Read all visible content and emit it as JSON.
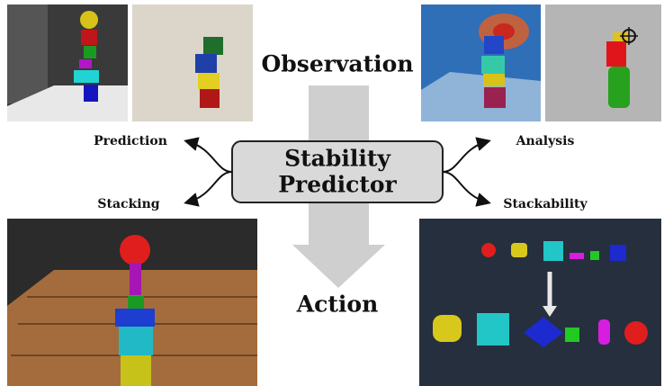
{
  "title": "Observation",
  "center": {
    "line1": "Stability",
    "line2": "Predictor"
  },
  "bottom": "Action",
  "branches": {
    "top_left": "Prediction",
    "bottom_left": "Stacking",
    "top_right": "Analysis",
    "bottom_right": "Stackability"
  }
}
